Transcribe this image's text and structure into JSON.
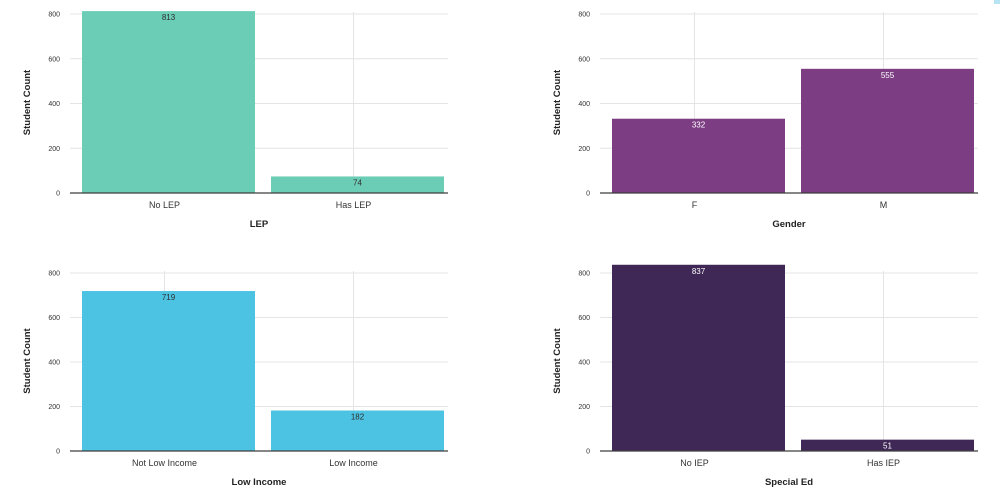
{
  "chart_data": [
    {
      "type": "bar",
      "categories": [
        "No LEP",
        "Has LEP"
      ],
      "values": [
        813,
        74
      ],
      "xlabel": "LEP",
      "ylabel": "Student Count",
      "ylim": [
        0,
        800
      ],
      "yticks": [
        0,
        200,
        400,
        600,
        800
      ],
      "color": "#6ccdb6",
      "label_color": "#2f2f2f",
      "grid": true
    },
    {
      "type": "bar",
      "categories": [
        "F",
        "M"
      ],
      "values": [
        332,
        555
      ],
      "xlabel": "Gender",
      "ylabel": "Student Count",
      "ylim": [
        0,
        800
      ],
      "yticks": [
        0,
        200,
        400,
        600,
        800
      ],
      "color": "#7d3d83",
      "label_color": "#ffffff",
      "grid": true
    },
    {
      "type": "bar",
      "categories": [
        "Not Low Income",
        "Low Income"
      ],
      "values": [
        719,
        182
      ],
      "xlabel": "Low Income",
      "ylabel": "Student Count",
      "ylim": [
        0,
        800
      ],
      "yticks": [
        0,
        200,
        400,
        600,
        800
      ],
      "color": "#4cc3e2",
      "label_color": "#2f2f2f",
      "grid": true
    },
    {
      "type": "bar",
      "categories": [
        "No IEP",
        "Has IEP"
      ],
      "values": [
        837,
        51
      ],
      "xlabel": "Special Ed",
      "ylabel": "Student Count",
      "ylim": [
        0,
        800
      ],
      "yticks": [
        0,
        200,
        400,
        600,
        800
      ],
      "color": "#3f2855",
      "label_color": "#ffffff",
      "grid": true
    }
  ]
}
